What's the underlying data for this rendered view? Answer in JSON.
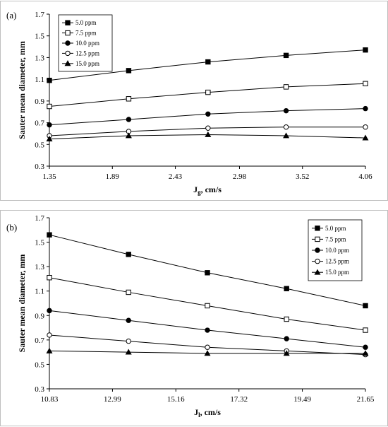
{
  "chart_data": [
    {
      "id": "a",
      "type": "line",
      "panel_label": "(a)",
      "ylabel": "Sauter mean diameter, mm",
      "xlabel_main": "J",
      "xlabel_sub": "g",
      "xlabel_rest": ", cm/s",
      "x_tick_labels": [
        "1.35",
        "1.89",
        "2.43",
        "2.98",
        "3.52",
        "4.06"
      ],
      "x_ticks": [
        1.35,
        1.89,
        2.43,
        2.98,
        3.52,
        4.06
      ],
      "xlim": [
        1.35,
        4.06
      ],
      "y_tick_labels": [
        "0.3",
        "0.5",
        "0.7",
        "0.9",
        "1.1",
        "1.3",
        "1.5",
        "1.7"
      ],
      "y_ticks": [
        0.3,
        0.5,
        0.7,
        0.9,
        1.1,
        1.3,
        1.5,
        1.7
      ],
      "ylim": [
        0.3,
        1.7
      ],
      "x": [
        1.35,
        2.03,
        2.71,
        3.38,
        4.06
      ],
      "legend_position": "top-left",
      "series": [
        {
          "name": "5.0 ppm",
          "marker": "square-filled",
          "values": [
            1.09,
            1.18,
            1.26,
            1.32,
            1.37
          ]
        },
        {
          "name": "7.5 ppm",
          "marker": "square-open",
          "values": [
            0.85,
            0.92,
            0.98,
            1.03,
            1.06
          ]
        },
        {
          "name": "10.0 ppm",
          "marker": "circle-filled",
          "values": [
            0.68,
            0.73,
            0.78,
            0.81,
            0.83
          ]
        },
        {
          "name": "12.5 ppm",
          "marker": "circle-open",
          "values": [
            0.58,
            0.62,
            0.65,
            0.66,
            0.66
          ]
        },
        {
          "name": "15.0 ppm",
          "marker": "triangle-filled",
          "values": [
            0.55,
            0.58,
            0.59,
            0.58,
            0.56
          ]
        }
      ]
    },
    {
      "id": "b",
      "type": "line",
      "panel_label": "(b)",
      "ylabel": "Sauter mean diameter, mm",
      "xlabel_main": "J",
      "xlabel_sub": "l",
      "xlabel_rest": ", cm/s",
      "x_tick_labels": [
        "10.83",
        "12.99",
        "15.16",
        "17.32",
        "19.49",
        "21.65"
      ],
      "x_ticks": [
        10.83,
        12.99,
        15.16,
        17.32,
        19.49,
        21.65
      ],
      "xlim": [
        10.83,
        21.65
      ],
      "y_tick_labels": [
        "0.3",
        "0.5",
        "0.7",
        "0.9",
        "1.1",
        "1.3",
        "1.5",
        "1.7"
      ],
      "y_ticks": [
        0.3,
        0.5,
        0.7,
        0.9,
        1.1,
        1.3,
        1.5,
        1.7
      ],
      "ylim": [
        0.3,
        1.7
      ],
      "x": [
        10.83,
        13.54,
        16.24,
        18.95,
        21.65
      ],
      "legend_position": "top-right",
      "series": [
        {
          "name": "5.0 ppm",
          "marker": "square-filled",
          "values": [
            1.56,
            1.4,
            1.25,
            1.12,
            0.98
          ]
        },
        {
          "name": "7.5 ppm",
          "marker": "square-open",
          "values": [
            1.21,
            1.09,
            0.98,
            0.87,
            0.78
          ]
        },
        {
          "name": "10.0 ppm",
          "marker": "circle-filled",
          "values": [
            0.94,
            0.86,
            0.78,
            0.71,
            0.64
          ]
        },
        {
          "name": "12.5 ppm",
          "marker": "circle-open",
          "values": [
            0.74,
            0.69,
            0.64,
            0.61,
            0.58
          ]
        },
        {
          "name": "15.0 ppm",
          "marker": "triangle-filled",
          "values": [
            0.61,
            0.6,
            0.59,
            0.59,
            0.59
          ]
        }
      ]
    }
  ]
}
